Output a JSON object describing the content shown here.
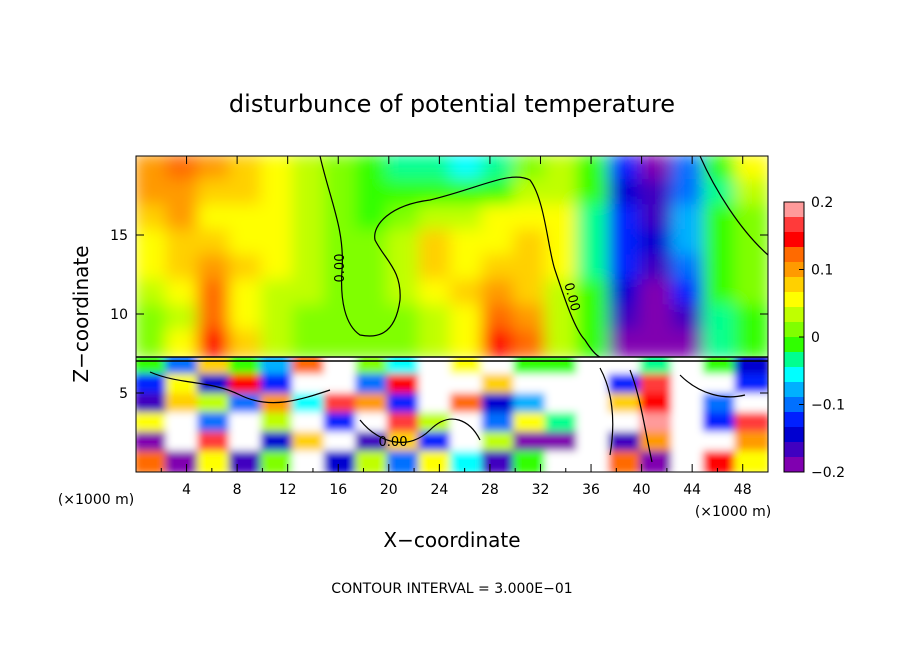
{
  "chart_data": {
    "type": "heatmap",
    "title": "disturbunce of potential temperature",
    "xlabel": "X−coordinate",
    "ylabel": "Z−coordinate",
    "x_unit_left": "(×1000 m)",
    "x_unit_right": "(×1000 m)",
    "xlim": [
      0,
      50
    ],
    "ylim": [
      0,
      20
    ],
    "x_ticks": [
      4,
      8,
      12,
      16,
      20,
      24,
      28,
      32,
      36,
      40,
      44,
      48
    ],
    "x_tick_labels": [
      "4",
      "8",
      "12",
      "16",
      "20",
      "24",
      "28",
      "32",
      "36",
      "40",
      "44",
      "48"
    ],
    "y_ticks": [
      5,
      10,
      15
    ],
    "y_tick_labels": [
      "5",
      "10",
      "15"
    ],
    "contour_labels": [
      "0.00",
      "0.00",
      "0.00"
    ],
    "colorbar": {
      "range": [
        -0.2,
        0.2
      ],
      "ticks": [
        0.2,
        0.1,
        0,
        -0.1,
        -0.2
      ],
      "tick_labels": [
        "0.2",
        "0.1",
        "0",
        "−0.1",
        "−0.2"
      ],
      "colors": [
        "#ff9a9a",
        "#ff3a3a",
        "#ff0000",
        "#ff6a00",
        "#ff9a00",
        "#ffd000",
        "#ffff00",
        "#c0ff00",
        "#80ff00",
        "#30ff00",
        "#00ff90",
        "#00ffff",
        "#00b0ff",
        "#0070ff",
        "#0020ff",
        "#0000d0",
        "#4000c0",
        "#8000b0"
      ]
    },
    "annotation": "CONTOUR INTERVAL = 3.000E−01",
    "upper_field": [
      [
        0.11,
        0.12,
        0.1,
        0.08,
        0.05,
        0.04,
        0.02,
        -0.02,
        -0.04,
        -0.03,
        -0.05,
        -0.04,
        0.02,
        0.04,
        0.0,
        -0.13,
        -0.18,
        -0.1,
        -0.02,
        0.05
      ],
      [
        0.1,
        0.11,
        0.08,
        0.07,
        0.05,
        0.03,
        0.01,
        -0.01,
        -0.02,
        -0.02,
        -0.02,
        0.0,
        0.03,
        0.04,
        -0.02,
        -0.15,
        -0.17,
        -0.09,
        -0.03,
        0.03
      ],
      [
        0.08,
        0.09,
        0.06,
        0.05,
        0.05,
        0.03,
        0.01,
        0.0,
        0.01,
        0.04,
        0.03,
        0.05,
        0.06,
        0.06,
        -0.03,
        -0.13,
        -0.16,
        -0.08,
        -0.02,
        0.02
      ],
      [
        0.06,
        0.07,
        0.08,
        0.06,
        0.06,
        0.04,
        0.02,
        0.02,
        0.03,
        0.07,
        0.05,
        0.06,
        0.07,
        0.06,
        -0.04,
        -0.12,
        -0.15,
        -0.08,
        -0.01,
        0.02
      ],
      [
        0.05,
        0.07,
        0.11,
        0.07,
        0.06,
        0.04,
        0.02,
        0.02,
        0.04,
        0.07,
        0.06,
        0.07,
        0.08,
        0.05,
        -0.03,
        -0.13,
        -0.16,
        -0.1,
        -0.01,
        0.01
      ],
      [
        0.03,
        0.05,
        0.12,
        0.06,
        0.04,
        0.03,
        0.01,
        0.02,
        0.03,
        0.05,
        0.07,
        0.09,
        0.08,
        0.04,
        -0.02,
        -0.14,
        -0.18,
        -0.12,
        -0.02,
        0.01
      ],
      [
        0.02,
        0.04,
        0.13,
        0.06,
        0.04,
        0.02,
        0.01,
        0.01,
        0.02,
        0.04,
        0.06,
        0.12,
        0.1,
        0.03,
        -0.01,
        -0.17,
        -0.2,
        -0.16,
        -0.03,
        0.0
      ],
      [
        0.02,
        0.05,
        0.14,
        0.07,
        0.04,
        0.02,
        0.01,
        0.01,
        0.02,
        0.04,
        0.06,
        0.14,
        0.12,
        0.03,
        0.0,
        -0.18,
        -0.22,
        -0.18,
        -0.03,
        0.0
      ]
    ],
    "lower_field": [
      [
        0.0,
        -0.1,
        0.08,
        0.0,
        -0.08,
        0.12,
        0.3,
        0.02,
        -0.06,
        0.3,
        0.06,
        0.3,
        0.0,
        0.0,
        0.3,
        0.3,
        -0.04,
        0.3,
        0.0,
        -0.14
      ],
      [
        -0.12,
        0.06,
        -0.14,
        0.14,
        -0.12,
        0.3,
        0.3,
        -0.1,
        0.14,
        0.3,
        0.3,
        0.08,
        0.3,
        0.3,
        0.3,
        -0.12,
        0.16,
        0.3,
        0.3,
        -0.12
      ],
      [
        -0.16,
        0.08,
        0.04,
        -0.1,
        0.1,
        -0.06,
        0.16,
        0.1,
        -0.12,
        0.3,
        0.12,
        -0.14,
        -0.08,
        0.3,
        0.3,
        0.08,
        0.14,
        0.3,
        -0.1,
        0.3
      ],
      [
        0.06,
        0.3,
        -0.1,
        0.3,
        0.04,
        0.3,
        -0.12,
        0.3,
        0.16,
        0.04,
        0.3,
        -0.1,
        0.06,
        -0.04,
        0.3,
        0.3,
        0.18,
        0.3,
        -0.12,
        0.16
      ],
      [
        -0.18,
        0.3,
        0.16,
        0.3,
        -0.14,
        0.08,
        0.3,
        -0.16,
        0.08,
        -0.12,
        0.3,
        0.04,
        -0.18,
        -0.2,
        0.3,
        -0.16,
        0.1,
        0.3,
        0.3,
        0.1
      ],
      [
        0.12,
        -0.18,
        0.06,
        -0.16,
        0.02,
        0.3,
        -0.14,
        0.04,
        -0.1,
        0.06,
        -0.06,
        -0.16,
        0.0,
        0.3,
        0.3,
        0.12,
        -0.2,
        0.3,
        0.14,
        0.06
      ]
    ]
  }
}
